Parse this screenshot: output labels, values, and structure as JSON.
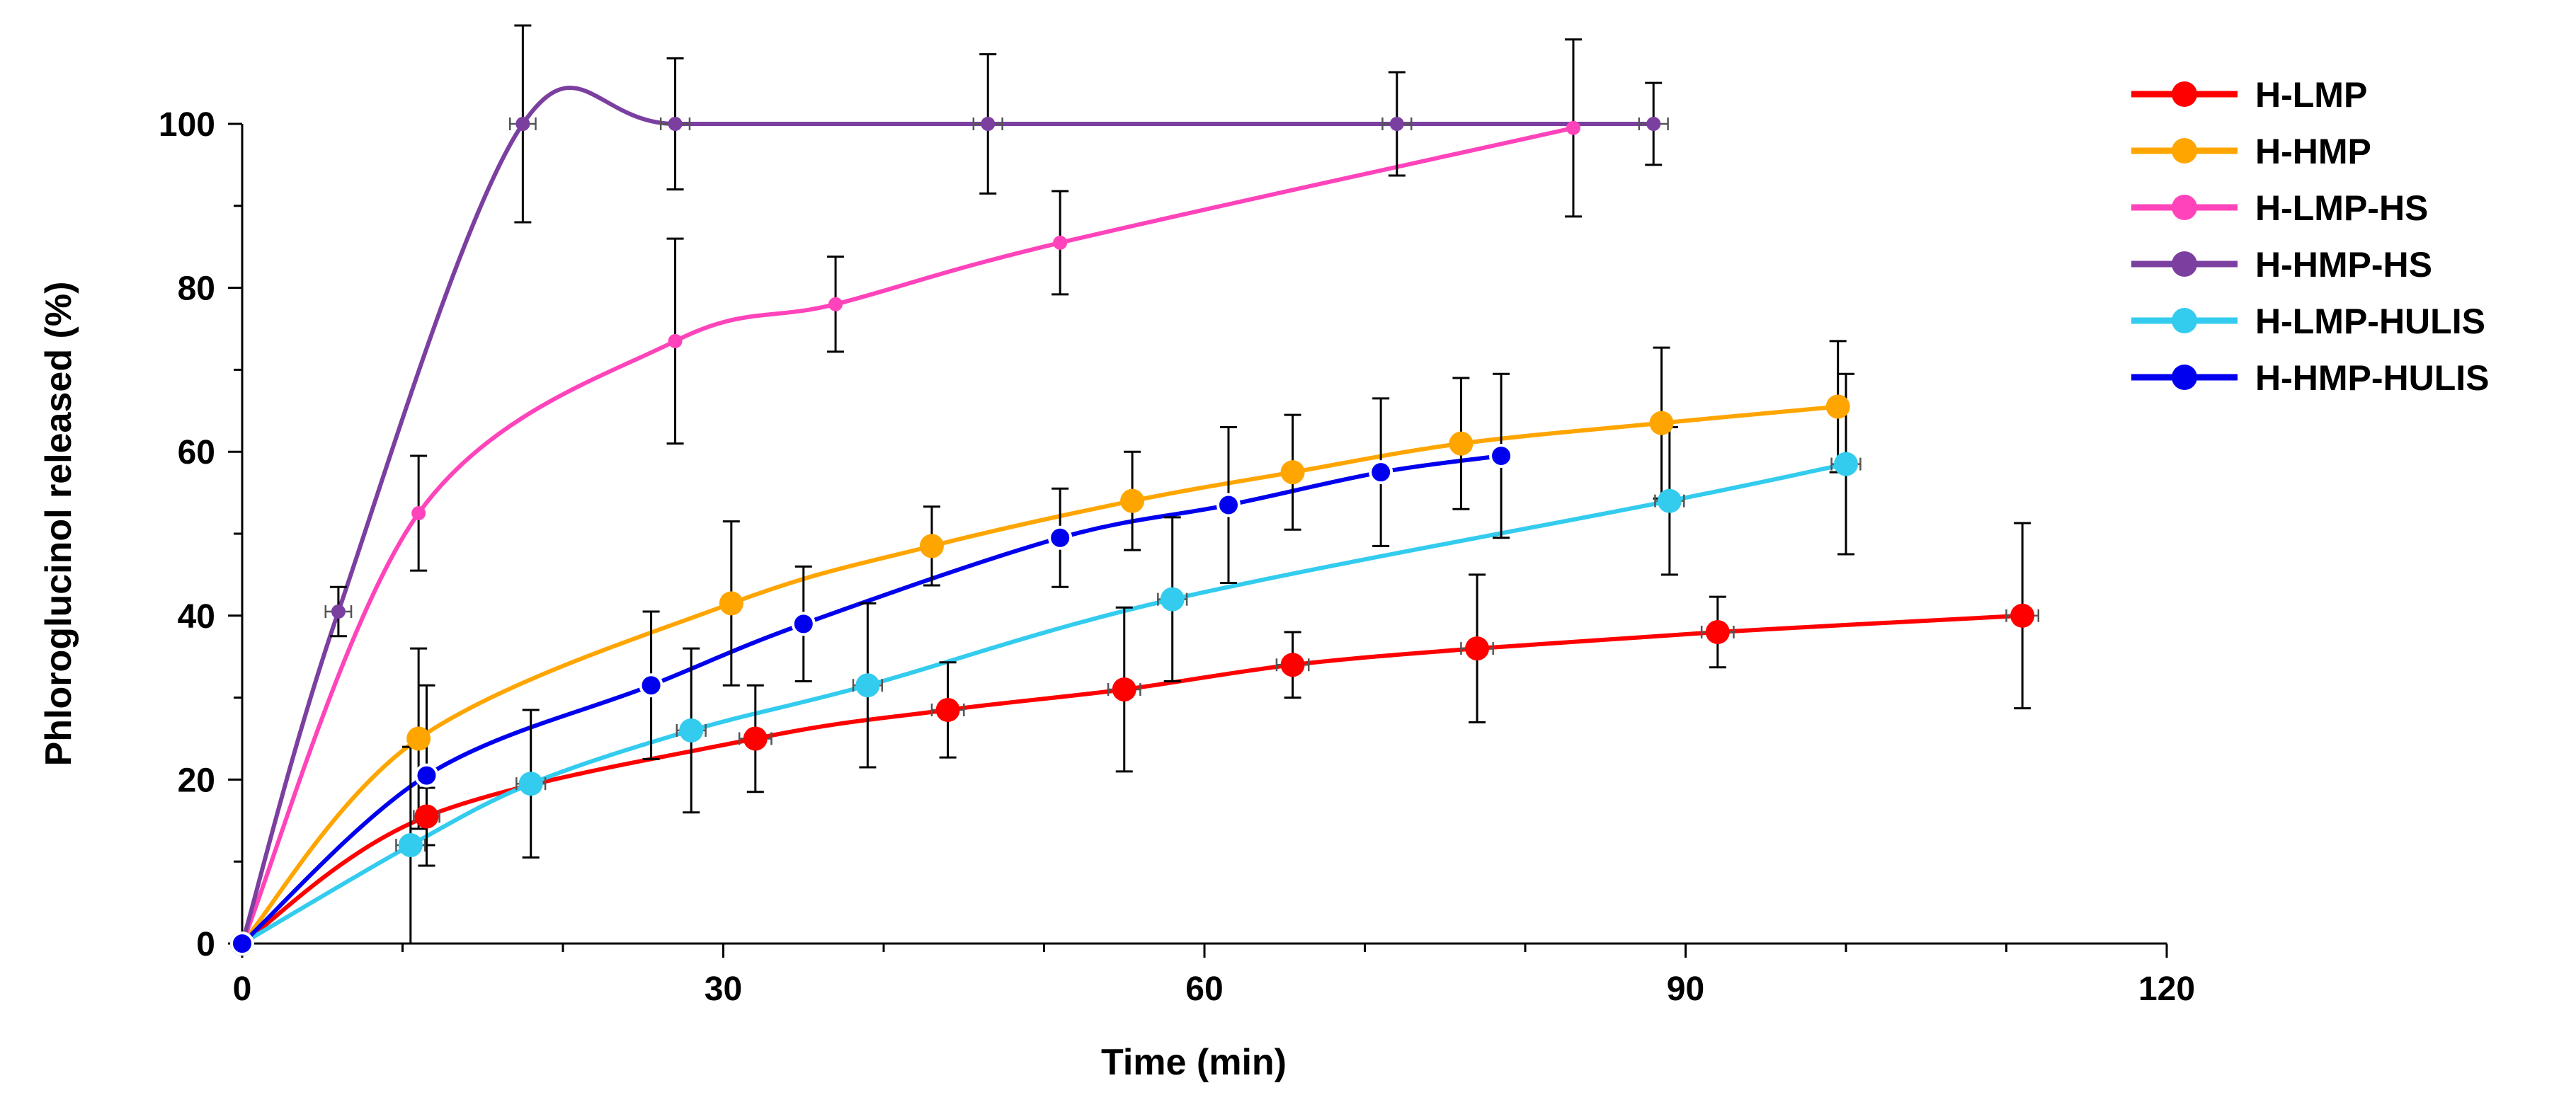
{
  "chart_data": {
    "type": "line",
    "title": "",
    "xlabel": "Time (min)",
    "ylabel": "Phloroglucinol released (%)",
    "xlim": [
      0,
      120
    ],
    "ylim": [
      0,
      100
    ],
    "x_ticks": [
      0,
      30,
      60,
      90,
      120
    ],
    "y_ticks": [
      0,
      20,
      40,
      60,
      80,
      100
    ],
    "grid": false,
    "legend_position": "top-right",
    "series": [
      {
        "name": "H-LMP",
        "color": "#ff0000",
        "marker": "large",
        "x": [
          0,
          11.5,
          32,
          44,
          55,
          65.5,
          77,
          92,
          111
        ],
        "y": [
          0,
          15.5,
          25,
          28.5,
          31,
          34,
          36,
          38,
          40
        ],
        "yerr": [
          0,
          3.5,
          6.5,
          5.8,
          10,
          4,
          9,
          4.3,
          11.3
        ],
        "xerr": [
          0,
          0.8,
          1.0,
          1.0,
          1.0,
          1.0,
          1.0,
          1.0,
          1.0
        ]
      },
      {
        "name": "H-HMP",
        "color": "#ffa500",
        "marker": "large",
        "x": [
          0,
          11,
          30.5,
          43,
          55.5,
          65.5,
          76,
          88.5,
          99.5
        ],
        "y": [
          0,
          25,
          41.5,
          48.5,
          54,
          57.5,
          61,
          63.5,
          65.5
        ],
        "yerr": [
          0,
          11,
          10,
          4.8,
          6,
          7,
          8,
          9.2,
          8
        ],
        "xerr": [
          0,
          0,
          0,
          0,
          0,
          0,
          0,
          0,
          0
        ]
      },
      {
        "name": "H-LMP-HS",
        "color": "#ff44bb",
        "marker": "small",
        "x": [
          0,
          11,
          27,
          37,
          51,
          83
        ],
        "y": [
          0,
          52.5,
          73.5,
          78,
          85.5,
          99.5
        ],
        "yerr": [
          0,
          7,
          12.5,
          5.8,
          6.3,
          10.8
        ],
        "xerr": [
          0,
          0,
          0,
          0,
          0,
          0
        ]
      },
      {
        "name": "H-HMP-HS",
        "color": "#7b3fa0",
        "marker": "small",
        "x": [
          0,
          6,
          17.5,
          27,
          46.5,
          72,
          88
        ],
        "y": [
          0,
          40.5,
          100,
          100,
          100,
          100,
          100
        ],
        "yerr": [
          0,
          3,
          12,
          8,
          8.5,
          6.3,
          5
        ],
        "xerr": [
          0,
          0.8,
          0.8,
          0.9,
          0.9,
          0.9,
          0.9
        ]
      },
      {
        "name": "H-LMP-HULIS",
        "color": "#33ccee",
        "marker": "large",
        "x": [
          0,
          10.5,
          18,
          28,
          39,
          58,
          89,
          100
        ],
        "y": [
          0,
          12,
          19.5,
          26,
          31.5,
          42,
          54,
          58.5
        ],
        "yerr": [
          0,
          12,
          9,
          10,
          10,
          10,
          9,
          11
        ],
        "xerr": [
          0,
          0.9,
          0.9,
          0.9,
          0.9,
          0.9,
          0.9,
          0.9
        ]
      },
      {
        "name": "H-HMP-HULIS",
        "color": "#0000ee",
        "marker": "ring",
        "x": [
          0,
          11.5,
          25.5,
          35,
          51,
          61.5,
          71,
          78.5
        ],
        "y": [
          0,
          20.5,
          31.5,
          39,
          49.5,
          53.5,
          57.5,
          59.5
        ],
        "yerr": [
          0,
          11,
          9,
          7,
          6,
          9.5,
          9,
          10
        ],
        "xerr": [
          0,
          0,
          0,
          0,
          0,
          0,
          0,
          0
        ]
      }
    ]
  }
}
